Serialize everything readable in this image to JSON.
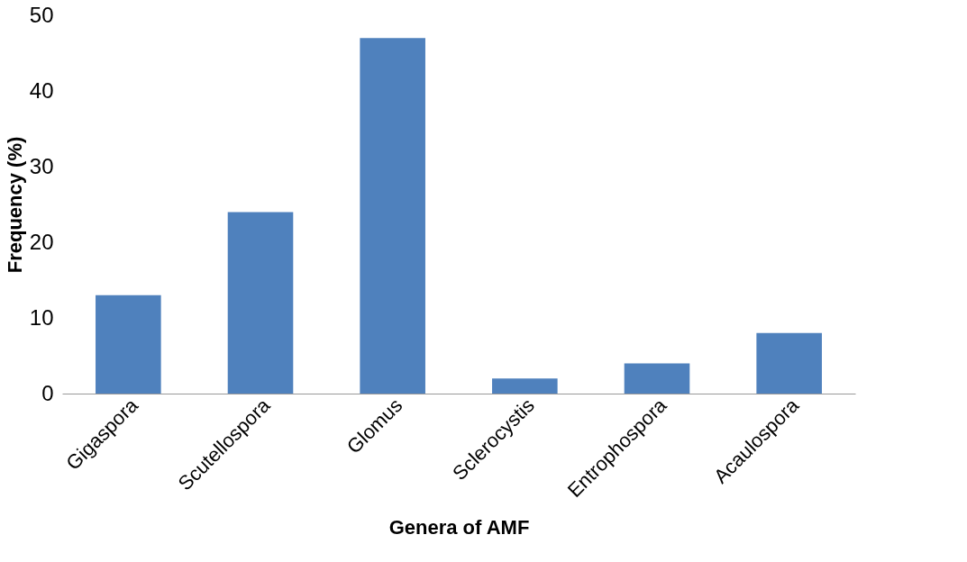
{
  "chart_data": {
    "type": "bar",
    "xlabel": "Genera of AMF",
    "ylabel": "Frequency  (%)",
    "categories": [
      "Gigaspora",
      "Scutellospora",
      "Glomus",
      "Sclerocystis",
      "Entrophospora",
      "Acaulospora"
    ],
    "values": [
      13,
      24,
      47,
      2,
      4,
      8
    ],
    "color": "#4f81bd",
    "ylim": [
      0,
      50
    ],
    "yticks": [
      0,
      10,
      20,
      30,
      40,
      50
    ],
    "grid": false
  }
}
